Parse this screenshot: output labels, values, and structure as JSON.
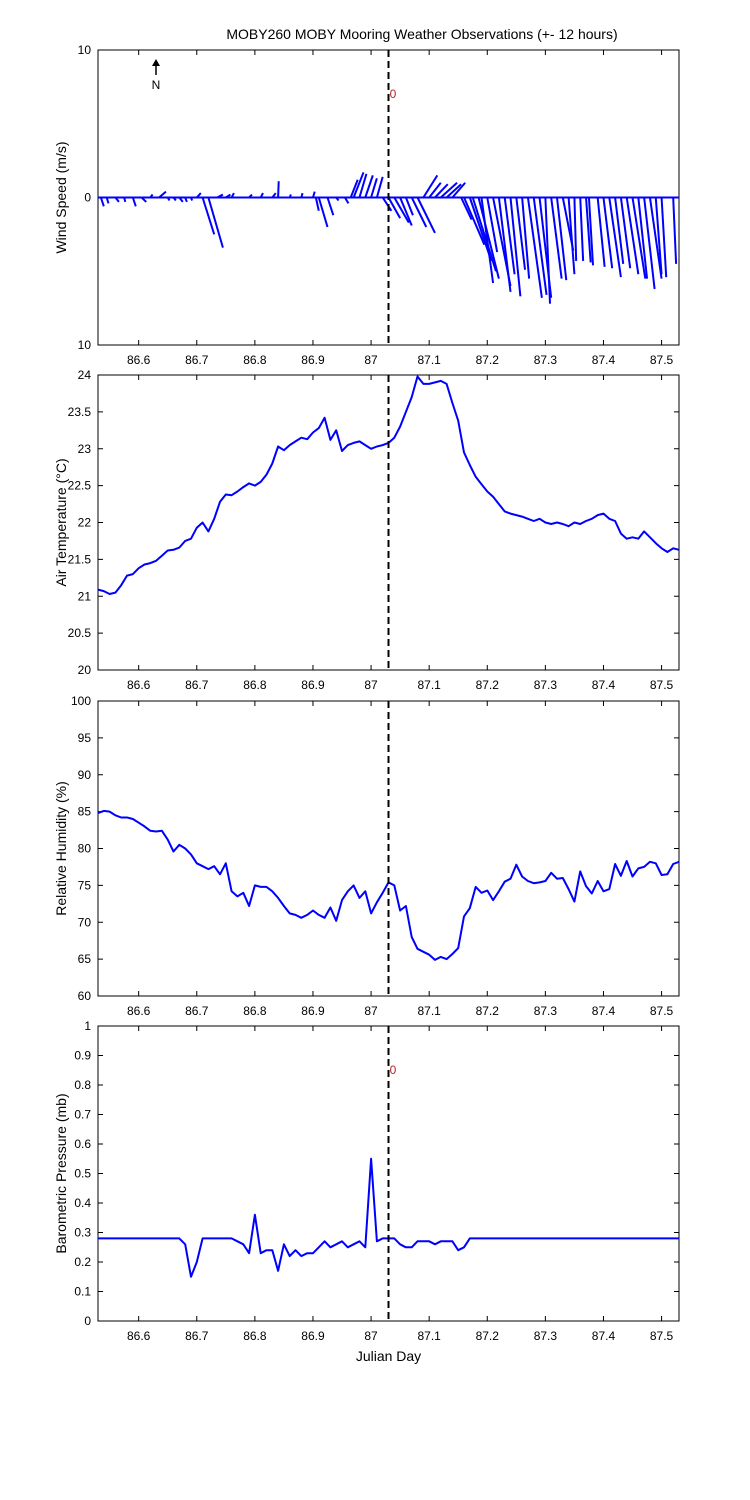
{
  "title": "MOBY260 MOBY Mooring Weather Observations (+- 12 hours)",
  "north_label": "N",
  "marker_label": "0",
  "colors": {
    "series": "#0000ff",
    "marker": "#000000",
    "marker_label": "#b22222",
    "axes": "#000000"
  },
  "chart_data": [
    {
      "type": "line",
      "variant": "wind-stick",
      "ylabel": "Wind Speed (m/s)",
      "xlim": [
        86.53,
        87.53
      ],
      "ylim": [
        -10,
        10
      ],
      "y_ticks": [
        -10,
        0,
        10
      ],
      "y_tick_labels": [
        "10",
        "0",
        "10"
      ],
      "x_ticks": [
        86.6,
        86.7,
        86.8,
        86.9,
        87,
        87.1,
        87.2,
        87.3,
        87.4,
        87.5
      ],
      "x_tick_labels": [
        "86.6",
        "86.7",
        "86.8",
        "86.9",
        "87",
        "87.1",
        "87.2",
        "87.3",
        "87.4",
        "87.5"
      ],
      "grid": false,
      "event_x": 87.03,
      "sticks": [
        [
          86.535,
          0.005,
          -0.6
        ],
        [
          86.545,
          0.003,
          -0.4
        ],
        [
          86.56,
          0.006,
          -0.3
        ],
        [
          86.575,
          0.002,
          -0.3
        ],
        [
          86.59,
          0.005,
          -0.6
        ],
        [
          86.605,
          0.008,
          -0.3
        ],
        [
          86.62,
          0.004,
          0.2
        ],
        [
          86.635,
          0.012,
          0.4
        ],
        [
          86.65,
          0.003,
          -0.2
        ],
        [
          86.66,
          0.004,
          -0.2
        ],
        [
          86.67,
          0.006,
          -0.3
        ],
        [
          86.68,
          0.003,
          -0.3
        ],
        [
          86.69,
          0.002,
          -0.2
        ],
        [
          86.7,
          0.007,
          0.3
        ],
        [
          86.71,
          0.02,
          -2.5
        ],
        [
          86.72,
          0.025,
          -3.4
        ],
        [
          86.735,
          0.01,
          0.2
        ],
        [
          86.75,
          0.008,
          0.2
        ],
        [
          86.76,
          0.004,
          0.3
        ],
        [
          86.79,
          0.005,
          0.2
        ],
        [
          86.81,
          0.004,
          0.3
        ],
        [
          86.83,
          0.006,
          0.3
        ],
        [
          86.84,
          0.001,
          1.1
        ],
        [
          86.86,
          0.002,
          0.2
        ],
        [
          86.88,
          0.002,
          0.3
        ],
        [
          86.9,
          0.003,
          0.4
        ],
        [
          86.905,
          0.005,
          -0.9
        ],
        [
          86.91,
          0.015,
          -2.0
        ],
        [
          86.925,
          0.01,
          -1.2
        ],
        [
          86.94,
          0.004,
          -0.2
        ],
        [
          86.955,
          0.006,
          -0.4
        ],
        [
          86.965,
          0.012,
          1.2
        ],
        [
          86.97,
          0.017,
          1.7
        ],
        [
          86.98,
          0.012,
          1.6
        ],
        [
          86.99,
          0.013,
          1.5
        ],
        [
          87.0,
          0.01,
          1.3
        ],
        [
          87.01,
          0.01,
          1.4
        ],
        [
          87.02,
          0.015,
          -0.9
        ],
        [
          87.03,
          0.02,
          -1.4
        ],
        [
          87.04,
          0.025,
          -1.7
        ],
        [
          87.05,
          0.02,
          -1.9
        ],
        [
          87.06,
          0.012,
          -1.2
        ],
        [
          87.07,
          0.025,
          -2.0
        ],
        [
          87.08,
          0.03,
          -2.4
        ],
        [
          87.09,
          0.024,
          1.5
        ],
        [
          87.1,
          0.02,
          1.0
        ],
        [
          87.11,
          0.022,
          0.9
        ],
        [
          87.12,
          0.028,
          1.0
        ],
        [
          87.13,
          0.025,
          0.9
        ],
        [
          87.14,
          0.022,
          1.0
        ],
        [
          87.155,
          0.018,
          -1.5
        ],
        [
          87.16,
          0.035,
          -3.2
        ],
        [
          87.17,
          0.037,
          -4.3
        ],
        [
          87.175,
          0.04,
          -5.0
        ],
        [
          87.185,
          0.035,
          -5.5
        ],
        [
          87.19,
          0.02,
          -5.8
        ],
        [
          87.2,
          0.017,
          -3.7
        ],
        [
          87.21,
          0.03,
          -6.0
        ],
        [
          87.22,
          0.02,
          -6.4
        ],
        [
          87.23,
          0.017,
          -5.2
        ],
        [
          87.24,
          0.017,
          -6.7
        ],
        [
          87.25,
          0.015,
          -4.9
        ],
        [
          87.26,
          0.012,
          -5.5
        ],
        [
          87.27,
          0.024,
          -6.8
        ],
        [
          87.28,
          0.022,
          -6.6
        ],
        [
          87.29,
          0.02,
          -6.8
        ],
        [
          87.3,
          0.008,
          -7.2
        ],
        [
          87.31,
          0.018,
          -5.5
        ],
        [
          87.32,
          0.016,
          -5.6
        ],
        [
          87.33,
          0.018,
          -3.6
        ],
        [
          87.34,
          0.01,
          -5.2
        ],
        [
          87.35,
          0.003,
          -4.3
        ],
        [
          87.36,
          0.005,
          -4.3
        ],
        [
          87.37,
          0.008,
          -4.4
        ],
        [
          87.375,
          0.007,
          -4.6
        ],
        [
          87.39,
          0.012,
          -4.7
        ],
        [
          87.4,
          0.015,
          -4.8
        ],
        [
          87.41,
          0.02,
          -5.4
        ],
        [
          87.42,
          0.014,
          -4.5
        ],
        [
          87.43,
          0.016,
          -4.8
        ],
        [
          87.44,
          0.02,
          -5.2
        ],
        [
          87.45,
          0.022,
          -5.5
        ],
        [
          87.46,
          0.015,
          -5.5
        ],
        [
          87.47,
          0.018,
          -6.2
        ],
        [
          87.48,
          0.02,
          -5.5
        ],
        [
          87.49,
          0.01,
          -5.2
        ],
        [
          87.5,
          0.008,
          -5.4
        ],
        [
          87.52,
          0.005,
          -4.5
        ]
      ]
    },
    {
      "type": "line",
      "ylabel": "Air Temperature (°C)",
      "xlim": [
        86.53,
        87.53
      ],
      "ylim": [
        20,
        24
      ],
      "y_ticks": [
        20,
        20.5,
        21,
        21.5,
        22,
        22.5,
        23,
        23.5,
        24
      ],
      "y_tick_labels": [
        "20",
        "20.5",
        "21",
        "21.5",
        "22",
        "22.5",
        "23",
        "23.5",
        "24"
      ],
      "x_ticks": [
        86.6,
        86.7,
        86.8,
        86.9,
        87,
        87.1,
        87.2,
        87.3,
        87.4,
        87.5
      ],
      "x_tick_labels": [
        "86.6",
        "86.7",
        "86.8",
        "86.9",
        "87",
        "87.1",
        "87.2",
        "87.3",
        "87.4",
        "87.5"
      ],
      "grid": false,
      "event_x": 87.03,
      "x": [
        86.53,
        86.54,
        86.55,
        86.56,
        86.57,
        86.58,
        86.59,
        86.6,
        86.61,
        86.62,
        86.63,
        86.64,
        86.65,
        86.66,
        86.67,
        86.68,
        86.69,
        86.7,
        86.71,
        86.72,
        86.73,
        86.74,
        86.75,
        86.76,
        86.77,
        86.78,
        86.79,
        86.8,
        86.81,
        86.82,
        86.83,
        86.84,
        86.85,
        86.86,
        86.87,
        86.88,
        86.89,
        86.9,
        86.91,
        86.92,
        86.93,
        86.94,
        86.95,
        86.96,
        86.97,
        86.98,
        86.99,
        87.0,
        87.01,
        87.02,
        87.03,
        87.04,
        87.05,
        87.06,
        87.07,
        87.08,
        87.09,
        87.1,
        87.11,
        87.12,
        87.13,
        87.14,
        87.15,
        87.16,
        87.17,
        87.18,
        87.19,
        87.2,
        87.21,
        87.22,
        87.23,
        87.24,
        87.25,
        87.26,
        87.27,
        87.28,
        87.29,
        87.3,
        87.31,
        87.32,
        87.33,
        87.34,
        87.35,
        87.36,
        87.37,
        87.38,
        87.39,
        87.4,
        87.41,
        87.42,
        87.43,
        87.44,
        87.45,
        87.46,
        87.47,
        87.48,
        87.49,
        87.5,
        87.51,
        87.52,
        87.53
      ],
      "values": [
        21.09,
        21.07,
        21.03,
        21.05,
        21.15,
        21.28,
        21.3,
        21.38,
        21.43,
        21.45,
        21.48,
        21.55,
        21.62,
        21.63,
        21.66,
        21.75,
        21.78,
        21.93,
        22.0,
        21.88,
        22.05,
        22.28,
        22.38,
        22.37,
        22.42,
        22.48,
        22.53,
        22.5,
        22.55,
        22.65,
        22.8,
        23.03,
        22.98,
        23.05,
        23.1,
        23.15,
        23.13,
        23.22,
        23.28,
        23.42,
        23.12,
        23.25,
        22.97,
        23.05,
        23.08,
        23.1,
        23.05,
        23.0,
        23.03,
        23.05,
        23.08,
        23.15,
        23.3,
        23.5,
        23.7,
        23.98,
        23.88,
        23.88,
        23.9,
        23.92,
        23.88,
        23.62,
        23.38,
        22.95,
        22.78,
        22.62,
        22.52,
        22.42,
        22.35,
        22.25,
        22.15,
        22.12,
        22.1,
        22.08,
        22.05,
        22.02,
        22.05,
        22.0,
        21.98,
        22.0,
        21.98,
        21.95,
        22.0,
        21.98,
        22.02,
        22.05,
        22.1,
        22.12,
        22.05,
        22.02,
        21.85,
        21.78,
        21.8,
        21.78,
        21.88,
        21.8,
        21.72,
        21.65,
        21.6,
        21.65,
        21.63
      ]
    },
    {
      "type": "line",
      "ylabel": "Relative Humidity (%)",
      "xlim": [
        86.53,
        87.53
      ],
      "ylim": [
        60,
        100
      ],
      "y_ticks": [
        60,
        65,
        70,
        75,
        80,
        85,
        90,
        95,
        100
      ],
      "y_tick_labels": [
        "60",
        "65",
        "70",
        "75",
        "80",
        "85",
        "90",
        "95",
        "100"
      ],
      "x_ticks": [
        86.6,
        86.7,
        86.8,
        86.9,
        87,
        87.1,
        87.2,
        87.3,
        87.4,
        87.5
      ],
      "x_tick_labels": [
        "86.6",
        "86.7",
        "86.8",
        "86.9",
        "87",
        "87.1",
        "87.2",
        "87.3",
        "87.4",
        "87.5"
      ],
      "grid": false,
      "event_x": 87.03,
      "x": [
        86.53,
        86.54,
        86.55,
        86.56,
        86.57,
        86.58,
        86.59,
        86.6,
        86.61,
        86.62,
        86.63,
        86.64,
        86.65,
        86.66,
        86.67,
        86.68,
        86.69,
        86.7,
        86.71,
        86.72,
        86.73,
        86.74,
        86.75,
        86.76,
        86.77,
        86.78,
        86.79,
        86.8,
        86.81,
        86.82,
        86.83,
        86.84,
        86.85,
        86.86,
        86.87,
        86.88,
        86.89,
        86.9,
        86.91,
        86.92,
        86.93,
        86.94,
        86.95,
        86.96,
        86.97,
        86.98,
        86.99,
        87.0,
        87.01,
        87.02,
        87.03,
        87.04,
        87.05,
        87.06,
        87.07,
        87.08,
        87.09,
        87.1,
        87.11,
        87.12,
        87.13,
        87.14,
        87.15,
        87.16,
        87.17,
        87.18,
        87.19,
        87.2,
        87.21,
        87.22,
        87.23,
        87.24,
        87.25,
        87.26,
        87.27,
        87.28,
        87.29,
        87.3,
        87.31,
        87.32,
        87.33,
        87.34,
        87.35,
        87.36,
        87.37,
        87.38,
        87.39,
        87.4,
        87.41,
        87.42,
        87.43,
        87.44,
        87.45,
        87.46,
        87.47,
        87.48,
        87.49,
        87.5,
        87.51,
        87.52,
        87.53
      ],
      "values": [
        84.8,
        85.1,
        85.0,
        84.5,
        84.2,
        84.2,
        84.0,
        83.5,
        83.0,
        82.4,
        82.3,
        82.4,
        81.2,
        79.6,
        80.5,
        80.0,
        79.2,
        78.0,
        77.6,
        77.2,
        77.6,
        76.5,
        78.0,
        74.2,
        73.5,
        74.0,
        72.2,
        75.0,
        74.8,
        74.8,
        74.2,
        73.3,
        72.2,
        71.2,
        71.0,
        70.6,
        71.0,
        71.6,
        71.0,
        70.6,
        72.0,
        70.2,
        73.0,
        74.2,
        75.0,
        73.3,
        74.2,
        71.2,
        72.7,
        74.0,
        75.4,
        75.0,
        71.6,
        72.2,
        68.0,
        66.4,
        66.0,
        65.6,
        64.9,
        65.3,
        65.0,
        65.7,
        66.5,
        70.8,
        71.9,
        74.8,
        74.0,
        74.3,
        73.0,
        74.2,
        75.5,
        75.9,
        77.8,
        76.2,
        75.6,
        75.3,
        75.4,
        75.6,
        76.7,
        75.9,
        76.0,
        74.5,
        72.8,
        76.9,
        74.9,
        73.9,
        75.6,
        74.2,
        74.5,
        77.9,
        76.3,
        78.3,
        76.2,
        77.3,
        77.5,
        78.2,
        78.0,
        76.4,
        76.5,
        77.9,
        78.2
      ]
    },
    {
      "type": "line",
      "ylabel": "Barometric Pressure (mb)",
      "xlabel": "Julian Day",
      "xlim": [
        86.53,
        87.53
      ],
      "ylim": [
        0,
        1
      ],
      "y_ticks": [
        0,
        0.1,
        0.2,
        0.3,
        0.4,
        0.5,
        0.6,
        0.7,
        0.8,
        0.9,
        1
      ],
      "y_tick_labels": [
        "0",
        "0.1",
        "0.2",
        "0.3",
        "0.4",
        "0.5",
        "0.6",
        "0.7",
        "0.8",
        "0.9",
        "1"
      ],
      "x_ticks": [
        86.6,
        86.7,
        86.8,
        86.9,
        87,
        87.1,
        87.2,
        87.3,
        87.4,
        87.5
      ],
      "x_tick_labels": [
        "86.6",
        "86.7",
        "86.8",
        "86.9",
        "87",
        "87.1",
        "87.2",
        "87.3",
        "87.4",
        "87.5"
      ],
      "grid": false,
      "event_x": 87.03,
      "x": [
        86.53,
        86.54,
        86.55,
        86.56,
        86.57,
        86.58,
        86.59,
        86.6,
        86.61,
        86.62,
        86.63,
        86.64,
        86.65,
        86.66,
        86.67,
        86.68,
        86.69,
        86.7,
        86.71,
        86.72,
        86.73,
        86.74,
        86.75,
        86.76,
        86.77,
        86.78,
        86.79,
        86.8,
        86.81,
        86.82,
        86.83,
        86.84,
        86.85,
        86.86,
        86.87,
        86.88,
        86.89,
        86.9,
        86.91,
        86.92,
        86.93,
        86.94,
        86.95,
        86.96,
        86.97,
        86.98,
        86.99,
        87.0,
        87.01,
        87.02,
        87.03,
        87.04,
        87.05,
        87.06,
        87.07,
        87.08,
        87.09,
        87.1,
        87.11,
        87.12,
        87.13,
        87.14,
        87.15,
        87.16,
        87.17,
        87.18,
        87.19,
        87.2,
        87.21,
        87.22,
        87.23,
        87.24,
        87.25,
        87.26,
        87.27,
        87.28,
        87.29,
        87.3,
        87.31,
        87.32,
        87.33,
        87.34,
        87.35,
        87.36,
        87.37,
        87.38,
        87.39,
        87.4,
        87.41,
        87.42,
        87.43,
        87.44,
        87.45,
        87.46,
        87.47,
        87.48,
        87.49,
        87.5,
        87.51,
        87.52,
        87.53
      ],
      "values": [
        0.28,
        0.28,
        0.28,
        0.28,
        0.28,
        0.28,
        0.28,
        0.28,
        0.28,
        0.28,
        0.28,
        0.28,
        0.28,
        0.28,
        0.28,
        0.26,
        0.15,
        0.2,
        0.28,
        0.28,
        0.28,
        0.28,
        0.28,
        0.28,
        0.27,
        0.26,
        0.23,
        0.36,
        0.23,
        0.24,
        0.24,
        0.17,
        0.26,
        0.22,
        0.24,
        0.22,
        0.23,
        0.23,
        0.25,
        0.27,
        0.25,
        0.26,
        0.27,
        0.25,
        0.26,
        0.27,
        0.25,
        0.55,
        0.27,
        0.28,
        0.28,
        0.28,
        0.26,
        0.25,
        0.25,
        0.27,
        0.27,
        0.27,
        0.26,
        0.27,
        0.27,
        0.27,
        0.24,
        0.25,
        0.28,
        0.28,
        0.28,
        0.28,
        0.28,
        0.28,
        0.28,
        0.28,
        0.28,
        0.28,
        0.28,
        0.28,
        0.28,
        0.28,
        0.28,
        0.28,
        0.28,
        0.28,
        0.28,
        0.28,
        0.28,
        0.28,
        0.28,
        0.28,
        0.28,
        0.28,
        0.28,
        0.28,
        0.28,
        0.28,
        0.28,
        0.28,
        0.28,
        0.28,
        0.28,
        0.28,
        0.28
      ]
    }
  ]
}
